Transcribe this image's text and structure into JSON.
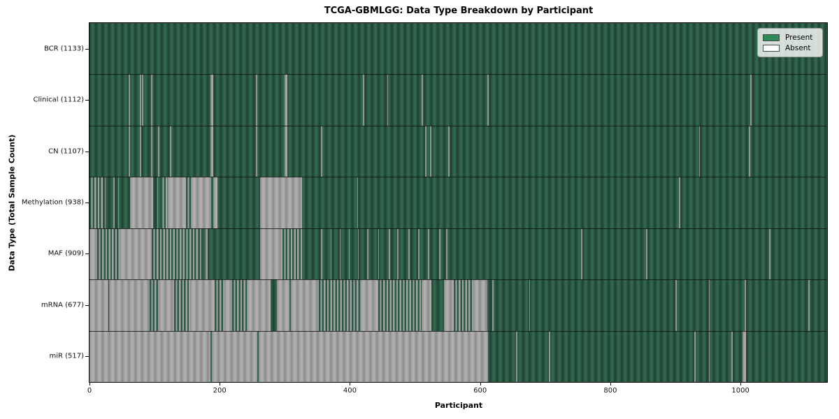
{
  "title": "TCGA-GBMLGG: Data Type Breakdown by Participant",
  "axes": {
    "xlabel": "Participant",
    "ylabel": "Data Type (Total Sample Count)"
  },
  "legend": {
    "present_label": "Present",
    "absent_label": "Absent"
  },
  "colors": {
    "present_bar": "#2b5a44",
    "present_bar_edge": "#1f4030",
    "absent_bar": "#a4a4a4",
    "absent_bar_edge": "#8a8a8a",
    "legend_present_swatch": "#2e8b57",
    "legend_absent_swatch": "#ffffff"
  },
  "chart_data": {
    "type": "heatmap",
    "title": "TCGA-GBMLGG: Data Type Breakdown by Participant",
    "xlabel": "Participant",
    "ylabel": "Data Type (Total Sample Count)",
    "x_range": [
      0,
      1133
    ],
    "x_ticks": [
      0,
      200,
      400,
      600,
      800,
      1000
    ],
    "legend_entries": [
      "Present",
      "Absent"
    ],
    "legend_position": "upper right",
    "grid": false,
    "rows": [
      {
        "name": "bcr",
        "label": "BCR (1133)",
        "present_count": 1133,
        "absent_segments": [],
        "mixed_segments": []
      },
      {
        "name": "clinical",
        "label": "Clinical (1112)",
        "present_count": 1112,
        "absent_segments": [
          [
            60,
            62
          ],
          [
            77,
            79
          ],
          [
            81,
            83
          ],
          [
            95,
            97
          ],
          [
            186,
            190
          ],
          [
            256,
            258
          ],
          [
            300,
            304
          ],
          [
            420,
            422
          ],
          [
            457,
            459
          ],
          [
            510,
            512
          ],
          [
            611,
            613
          ],
          [
            1015,
            1017
          ]
        ],
        "mixed_segments": []
      },
      {
        "name": "cn",
        "label": "CN (1107)",
        "present_count": 1107,
        "absent_segments": [
          [
            60,
            62
          ],
          [
            77,
            79
          ],
          [
            95,
            97
          ],
          [
            105,
            107
          ],
          [
            124,
            126
          ],
          [
            186,
            190
          ],
          [
            256,
            258
          ],
          [
            300,
            304
          ],
          [
            356,
            358
          ],
          [
            516,
            518
          ],
          [
            523,
            525
          ],
          [
            551,
            553
          ],
          [
            936,
            938
          ],
          [
            1013,
            1015
          ]
        ],
        "mixed_segments": []
      },
      {
        "name": "methylation",
        "label": "Methylation (938)",
        "present_count": 938,
        "absent_segments": [
          [
            24,
            25
          ],
          [
            37,
            38
          ],
          [
            44,
            45
          ],
          [
            62,
            98
          ],
          [
            104,
            105
          ],
          [
            120,
            148
          ],
          [
            156,
            187
          ],
          [
            190,
            197
          ],
          [
            262,
            326
          ],
          [
            411,
            412
          ],
          [
            905,
            907
          ]
        ],
        "mixed_segments": [
          [
            0,
            22
          ],
          [
            110,
            120
          ],
          [
            148,
            156
          ]
        ]
      },
      {
        "name": "maf",
        "label": "MAF (909)",
        "present_count": 909,
        "absent_segments": [
          [
            0,
            12
          ],
          [
            46,
            96
          ],
          [
            170,
            172
          ],
          [
            178,
            181
          ],
          [
            262,
            296
          ],
          [
            356,
            358
          ],
          [
            370,
            372
          ],
          [
            384,
            386
          ],
          [
            398,
            400
          ],
          [
            412,
            414
          ],
          [
            426,
            428
          ],
          [
            443,
            445
          ],
          [
            460,
            462
          ],
          [
            473,
            475
          ],
          [
            490,
            492
          ],
          [
            505,
            507
          ],
          [
            520,
            522
          ],
          [
            537,
            539
          ],
          [
            548,
            550
          ],
          [
            755,
            757
          ],
          [
            855,
            857
          ],
          [
            1044,
            1046
          ]
        ],
        "mixed_segments": [
          [
            12,
            46
          ],
          [
            96,
            166
          ],
          [
            296,
            326
          ]
        ]
      },
      {
        "name": "mrna",
        "label": "mRNA (677)",
        "present_count": 677,
        "absent_segments": [
          [
            0,
            29
          ],
          [
            30,
            92
          ],
          [
            106,
            130
          ],
          [
            155,
            192
          ],
          [
            207,
            219
          ],
          [
            242,
            278
          ],
          [
            288,
            307
          ],
          [
            309,
            352
          ],
          [
            416,
            444
          ],
          [
            510,
            525
          ],
          [
            544,
            560
          ],
          [
            590,
            611
          ],
          [
            619,
            621
          ],
          [
            675,
            677
          ],
          [
            900,
            902
          ],
          [
            951,
            953
          ],
          [
            1006,
            1008
          ],
          [
            1104,
            1106
          ]
        ],
        "mixed_segments": [
          [
            92,
            106
          ],
          [
            130,
            155
          ],
          [
            192,
            207
          ],
          [
            219,
            242
          ],
          [
            352,
            416
          ],
          [
            444,
            510
          ],
          [
            560,
            590
          ]
        ]
      },
      {
        "name": "mir",
        "label": "miR (517)",
        "present_count": 517,
        "absent_segments": [
          [
            0,
            186
          ],
          [
            188,
            258
          ],
          [
            260,
            612
          ],
          [
            655,
            657
          ],
          [
            706,
            708
          ],
          [
            929,
            931
          ],
          [
            951,
            953
          ],
          [
            986,
            988
          ],
          [
            1003,
            1008
          ]
        ],
        "mixed_segments": []
      }
    ]
  }
}
